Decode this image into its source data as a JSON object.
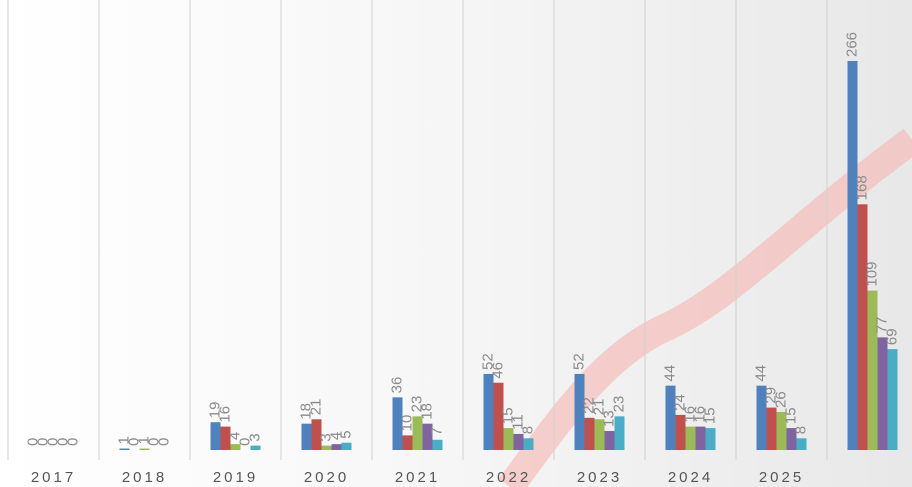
{
  "chart_data": {
    "type": "bar",
    "categories": [
      "2017",
      "2018",
      "2019",
      "2020",
      "2021",
      "2022",
      "2023",
      "2024",
      "2025",
      null
    ],
    "series": [
      {
        "color": "#4f81bd",
        "values": [
          0,
          1,
          19,
          18,
          36,
          52,
          52,
          44,
          44,
          266
        ]
      },
      {
        "color": "#c0504d",
        "values": [
          0,
          0,
          16,
          21,
          10,
          46,
          22,
          24,
          29,
          168
        ]
      },
      {
        "color": "#9bbb59",
        "values": [
          0,
          1,
          4,
          3,
          23,
          15,
          21,
          16,
          26,
          109
        ]
      },
      {
        "color": "#8064a2",
        "values": [
          0,
          0,
          0,
          4,
          18,
          11,
          13,
          16,
          15,
          77
        ]
      },
      {
        "color": "#4bacc6",
        "values": [
          0,
          0,
          3,
          5,
          7,
          8,
          23,
          15,
          8,
          69
        ]
      }
    ]
  }
}
